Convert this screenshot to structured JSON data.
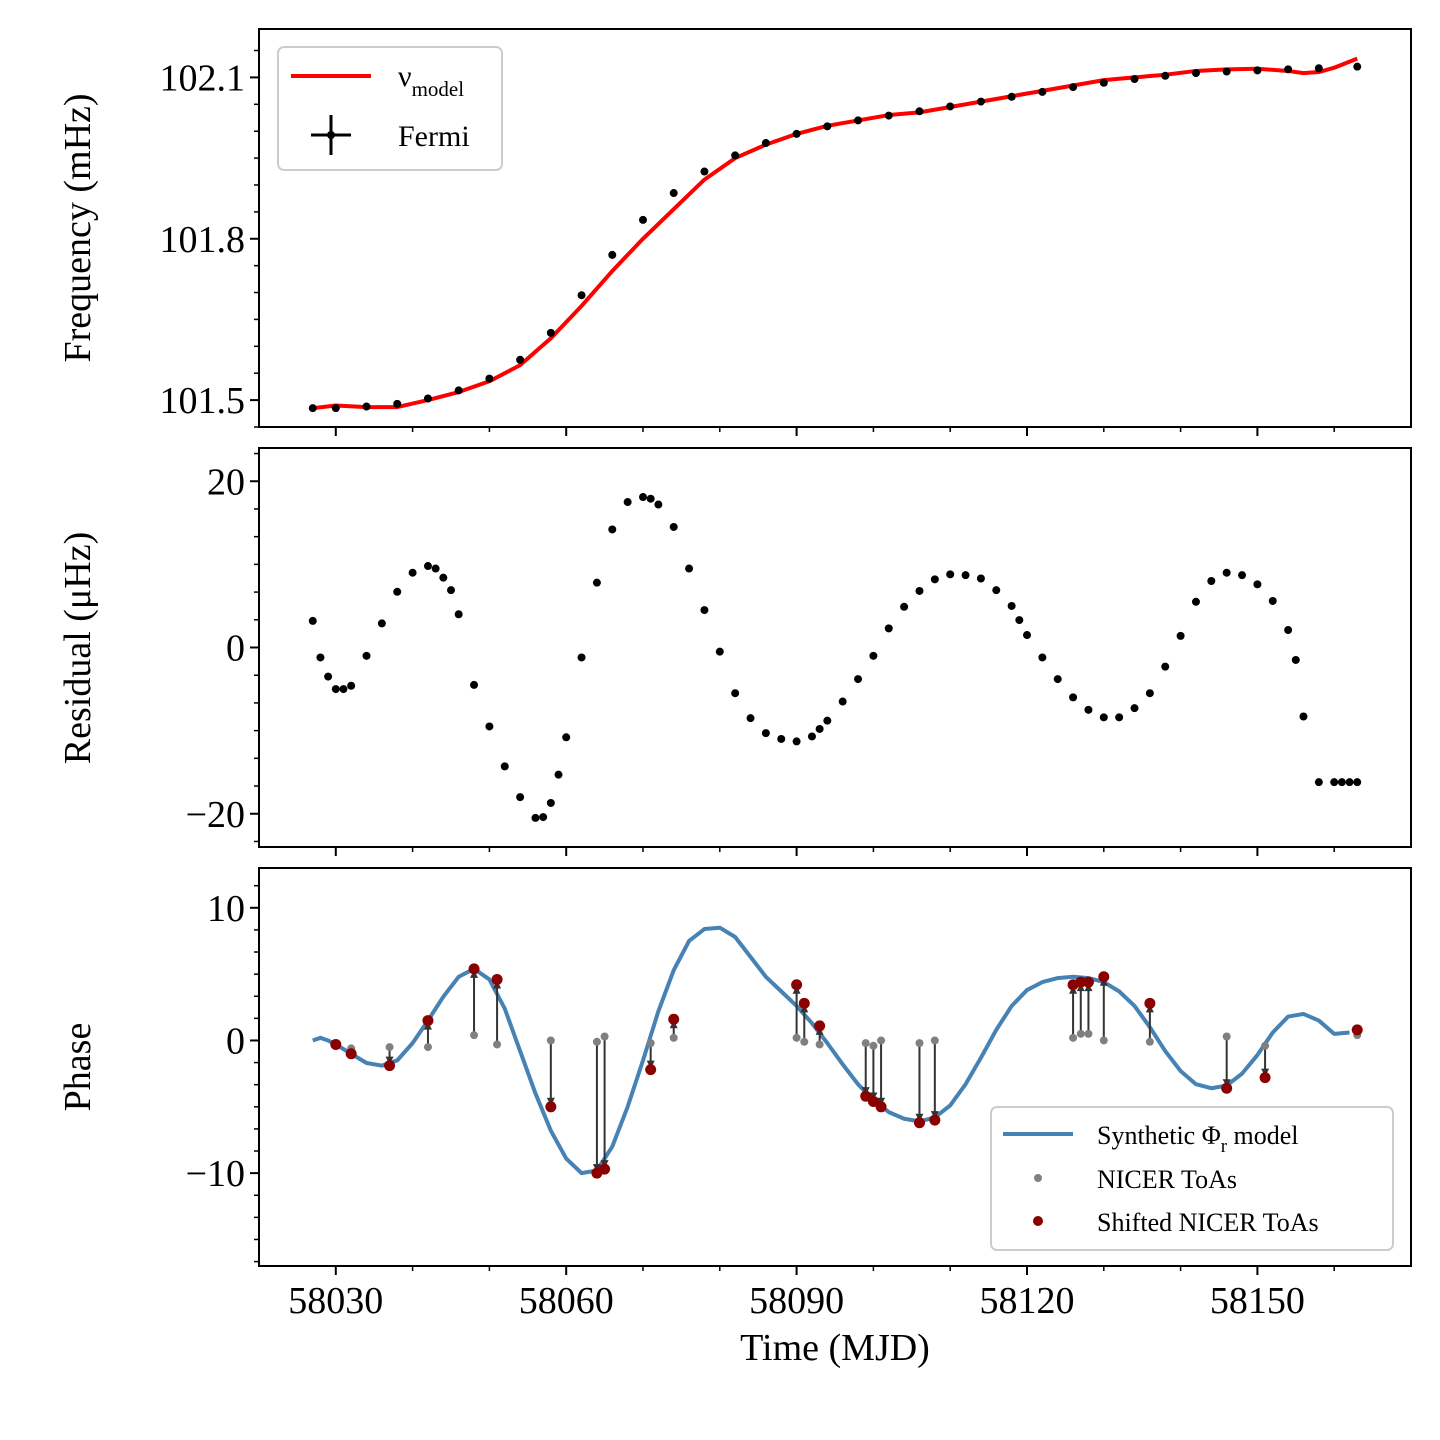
{
  "chart_data": [
    {
      "panel": "top",
      "type": "line",
      "ylabel": "Frequency (mHz)",
      "xlim": [
        58020,
        58170
      ],
      "ylim": [
        101.45,
        102.19
      ],
      "yticks": [
        101.5,
        101.8,
        102.1
      ],
      "ytick_labels": [
        "101.5",
        "101.8",
        "102.1"
      ],
      "legend": {
        "position": "upper-left",
        "model_label": "ν",
        "model_subscript": "model",
        "fermi_label": "Fermi"
      },
      "colors": {
        "model": "#ff0000",
        "fermi": "#000000"
      },
      "series": [
        {
          "name": "ν_model",
          "x": [
            58027,
            58030,
            58034,
            58038,
            58042,
            58046,
            58050,
            58054,
            58058,
            58062,
            58066,
            58070,
            58074,
            58078,
            58082,
            58086,
            58090,
            58094,
            58098,
            58102,
            58106,
            58110,
            58114,
            58118,
            58122,
            58126,
            58130,
            58134,
            58138,
            58142,
            58146,
            58150,
            58154,
            58156,
            58158,
            58160,
            58163
          ],
          "y": [
            101.485,
            101.49,
            101.487,
            101.487,
            101.5,
            101.515,
            101.535,
            101.565,
            101.615,
            101.675,
            101.74,
            101.8,
            101.855,
            101.91,
            101.95,
            101.975,
            101.995,
            102.01,
            102.02,
            102.03,
            102.035,
            102.045,
            102.055,
            102.065,
            102.075,
            102.085,
            102.095,
            102.1,
            102.105,
            102.112,
            102.115,
            102.116,
            102.112,
            102.108,
            102.11,
            102.118,
            102.135
          ]
        },
        {
          "name": "Fermi",
          "x": [
            58027,
            58030,
            58034,
            58038,
            58042,
            58046,
            58050,
            58054,
            58058,
            58062,
            58066,
            58070,
            58074,
            58078,
            58082,
            58086,
            58090,
            58094,
            58098,
            58102,
            58106,
            58110,
            58114,
            58118,
            58122,
            58126,
            58130,
            58134,
            58138,
            58142,
            58146,
            58150,
            58154,
            58158,
            58163
          ],
          "y": [
            101.485,
            101.485,
            101.488,
            101.493,
            101.503,
            101.518,
            101.54,
            101.575,
            101.625,
            101.695,
            101.77,
            101.835,
            101.885,
            101.925,
            101.955,
            101.978,
            101.995,
            102.009,
            102.02,
            102.029,
            102.037,
            102.046,
            102.055,
            102.064,
            102.073,
            102.082,
            102.09,
            102.097,
            102.103,
            102.108,
            102.111,
            102.113,
            102.115,
            102.117,
            102.12
          ]
        }
      ]
    },
    {
      "panel": "middle",
      "type": "scatter",
      "ylabel": "Residual (μHz)",
      "xlim": [
        58020,
        58170
      ],
      "ylim": [
        -24,
        24
      ],
      "yticks": [
        -20,
        0,
        20
      ],
      "ytick_labels": [
        "−20",
        "0",
        "20"
      ],
      "colors": {
        "points": "#000000"
      },
      "series": [
        {
          "name": "Residual",
          "x": [
            58027,
            58028,
            58029,
            58030,
            58031,
            58032,
            58034,
            58036,
            58038,
            58040,
            58042,
            58043,
            58044,
            58045,
            58046,
            58048,
            58050,
            58052,
            58054,
            58056,
            58057,
            58058,
            58059,
            58060,
            58062,
            58064,
            58066,
            58068,
            58070,
            58071,
            58072,
            58074,
            58076,
            58078,
            58080,
            58082,
            58084,
            58086,
            58088,
            58090,
            58092,
            58093,
            58094,
            58096,
            58098,
            58100,
            58102,
            58104,
            58106,
            58108,
            58110,
            58112,
            58114,
            58116,
            58118,
            58119,
            58120,
            58122,
            58124,
            58126,
            58128,
            58130,
            58132,
            58134,
            58136,
            58138,
            58140,
            58142,
            58144,
            58146,
            58148,
            58150,
            58152,
            58154,
            58155,
            58156,
            58158,
            58160,
            58161,
            58162,
            58163
          ],
          "y": [
            3.2,
            -1.2,
            -3.5,
            -5.0,
            -5.0,
            -4.6,
            -1.0,
            2.9,
            6.7,
            9.0,
            9.8,
            9.5,
            8.4,
            6.9,
            4.0,
            -4.5,
            -9.5,
            -14.3,
            -18.0,
            -20.5,
            -20.4,
            -18.7,
            -15.3,
            -10.8,
            -1.2,
            7.8,
            14.2,
            17.5,
            18.1,
            17.9,
            17.2,
            14.5,
            9.5,
            4.5,
            -0.5,
            -5.5,
            -8.5,
            -10.3,
            -11.0,
            -11.3,
            -10.7,
            -9.8,
            -8.8,
            -6.5,
            -3.8,
            -1.0,
            2.3,
            4.9,
            6.8,
            8.2,
            8.8,
            8.7,
            8.3,
            6.9,
            5.0,
            3.3,
            1.5,
            -1.2,
            -3.8,
            -6.0,
            -7.5,
            -8.4,
            -8.4,
            -7.3,
            -5.5,
            -2.3,
            1.4,
            5.5,
            8.0,
            9.0,
            8.7,
            7.6,
            5.6,
            2.1,
            -1.5,
            -8.3,
            -16.2,
            -16.2,
            -16.2,
            -16.2,
            -16.2
          ]
        }
      ]
    },
    {
      "panel": "bottom",
      "type": "line",
      "xlabel": "Time (MJD)",
      "ylabel": "Phase",
      "xlim": [
        58020,
        58170
      ],
      "ylim": [
        -17,
        13
      ],
      "yticks": [
        -10,
        0,
        10
      ],
      "ytick_labels": [
        "−10",
        "0",
        "10"
      ],
      "xticks": [
        58030,
        58060,
        58090,
        58120,
        58150
      ],
      "xtick_labels": [
        "58030",
        "58060",
        "58090",
        "58120",
        "58150"
      ],
      "legend": {
        "position": "lower-right",
        "model_label": "Synthetic Φ",
        "model_subscript": "r",
        "model_suffix": " model",
        "nicer_label": "NICER ToAs",
        "shifted_label": "Shifted NICER ToAs"
      },
      "colors": {
        "model": "#4682b4",
        "nicer": "#808080",
        "shifted": "#8b0000",
        "arrows": "#333333"
      },
      "series": [
        {
          "name": "Synthetic Φr model",
          "x": [
            58027,
            58028,
            58029,
            58030,
            58032,
            58034,
            58036,
            58038,
            58040,
            58042,
            58044,
            58046,
            58048,
            58050,
            58052,
            58054,
            58056,
            58058,
            58060,
            58062,
            58064,
            58066,
            58068,
            58070,
            58072,
            58074,
            58076,
            58078,
            58080,
            58082,
            58084,
            58086,
            58088,
            58090,
            58092,
            58094,
            58096,
            58098,
            58100,
            58102,
            58104,
            58106,
            58108,
            58110,
            58112,
            58114,
            58116,
            58118,
            58120,
            58122,
            58124,
            58126,
            58128,
            58130,
            58132,
            58134,
            58136,
            58138,
            58140,
            58142,
            58144,
            58146,
            58148,
            58150,
            58152,
            58154,
            58156,
            58158,
            58160,
            58162
          ],
          "y": [
            0.0,
            0.2,
            0.0,
            -0.3,
            -1.0,
            -1.7,
            -1.9,
            -1.5,
            -0.2,
            1.5,
            3.3,
            4.8,
            5.4,
            4.6,
            2.4,
            -0.8,
            -4.0,
            -6.8,
            -8.9,
            -10.0,
            -9.8,
            -8.0,
            -5.0,
            -1.5,
            2.2,
            5.3,
            7.5,
            8.4,
            8.5,
            7.8,
            6.3,
            4.8,
            3.7,
            2.6,
            1.3,
            -0.2,
            -1.8,
            -3.3,
            -4.5,
            -5.4,
            -5.9,
            -6.1,
            -5.8,
            -4.9,
            -3.3,
            -1.3,
            0.8,
            2.6,
            3.8,
            4.4,
            4.7,
            4.8,
            4.7,
            4.4,
            3.7,
            2.6,
            1.0,
            -0.8,
            -2.3,
            -3.3,
            -3.6,
            -3.4,
            -2.5,
            -1.1,
            0.6,
            1.8,
            2.0,
            1.5,
            0.5,
            0.6
          ]
        },
        {
          "name": "NICER ToAs",
          "x": [
            58030,
            58032,
            58037,
            58042,
            58048,
            58051,
            58058,
            58064,
            58065,
            58071,
            58074,
            58090,
            58091,
            58093,
            58099,
            58100,
            58101,
            58106,
            58108,
            58126,
            58127,
            58128,
            58130,
            58136,
            58146,
            58151,
            58163
          ],
          "y": [
            -0.3,
            -0.6,
            -0.5,
            -0.5,
            0.4,
            -0.3,
            0.0,
            -0.1,
            0.3,
            -0.2,
            0.2,
            0.2,
            -0.1,
            -0.3,
            -0.2,
            -0.4,
            0.0,
            -0.2,
            0.0,
            0.2,
            0.5,
            0.5,
            0.0,
            -0.1,
            0.3,
            -0.4,
            0.4
          ]
        },
        {
          "name": "Shifted NICER ToAs",
          "x": [
            58030,
            58032,
            58037,
            58042,
            58048,
            58051,
            58058,
            58064,
            58065,
            58071,
            58074,
            58090,
            58091,
            58093,
            58099,
            58100,
            58101,
            58106,
            58108,
            58126,
            58127,
            58128,
            58130,
            58136,
            58146,
            58151,
            58163
          ],
          "y": [
            -0.3,
            -1.0,
            -1.9,
            1.5,
            5.4,
            4.6,
            -5.0,
            -10.0,
            -9.7,
            -2.2,
            1.6,
            4.2,
            2.8,
            1.1,
            -4.2,
            -4.6,
            -5.0,
            -6.2,
            -6.0,
            4.2,
            4.4,
            4.4,
            4.8,
            2.8,
            -3.6,
            -2.8,
            0.8
          ]
        }
      ]
    }
  ]
}
